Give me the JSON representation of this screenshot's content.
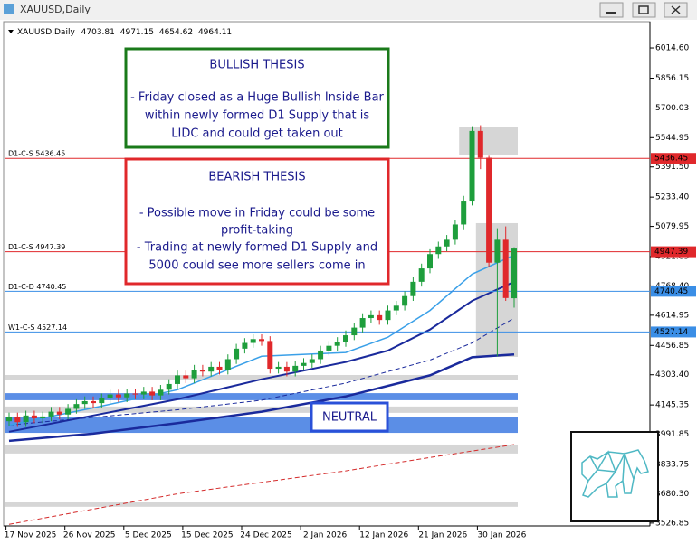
{
  "chart_data": {
    "type": "candlestick",
    "symbol": "XAUUSD,Daily",
    "categories": [
      null,
      null,
      "17 Nov 2025",
      null,
      null,
      null,
      null,
      null,
      null,
      "26 Nov 2025",
      null,
      null,
      null,
      null,
      null,
      null,
      "5 Dec 2025",
      null,
      null,
      null,
      null,
      null,
      null,
      "15 Dec 2025",
      null,
      null,
      null,
      null,
      null,
      null,
      "24 Dec 2025",
      null,
      null,
      null,
      null,
      null,
      null,
      "2 Jan 2026",
      null,
      null,
      null,
      null,
      null,
      null,
      "12 Jan 2026",
      null,
      null,
      null,
      null,
      null,
      null,
      "21 Jan 2026",
      null,
      null,
      null,
      null,
      null,
      null,
      "30 Jan 2026",
      null,
      null
    ],
    "open": [
      4060,
      4080,
      4055,
      4090,
      4075,
      4085,
      4110,
      4095,
      4125,
      4150,
      4165,
      4155,
      4180,
      4200,
      4185,
      4205,
      4200,
      4215,
      4195,
      4225,
      4255,
      4300,
      4285,
      4330,
      4320,
      4345,
      4330,
      4385,
      4440,
      4470,
      4490,
      4480,
      4335,
      4345,
      4320,
      4350,
      4365,
      4385,
      4430,
      4455,
      4475,
      4510,
      4550,
      4600,
      4615,
      4590,
      4640,
      4665,
      4715,
      4790,
      4860,
      4935,
      4975,
      5010,
      5090,
      5215,
      5580,
      5440,
      4890,
      5010,
      4703.81
    ],
    "high": [
      4105,
      4105,
      4115,
      4115,
      4110,
      4135,
      4135,
      4150,
      4175,
      4190,
      4190,
      4205,
      4225,
      4225,
      4230,
      4230,
      4240,
      4240,
      4250,
      4280,
      4325,
      4325,
      4355,
      4355,
      4370,
      4370,
      4410,
      4465,
      4495,
      4515,
      4515,
      4505,
      4370,
      4370,
      4375,
      4390,
      4410,
      4455,
      4480,
      4500,
      4535,
      4575,
      4625,
      4640,
      4640,
      4665,
      4690,
      4740,
      4815,
      4885,
      4960,
      5000,
      5035,
      5115,
      5240,
      5605,
      5610,
      5450,
      5070,
      5080,
      4971.15
    ],
    "low": [
      4035,
      4030,
      4030,
      4050,
      4050,
      4060,
      4070,
      4070,
      4100,
      4125,
      4130,
      4130,
      4155,
      4160,
      4160,
      4175,
      4175,
      4170,
      4170,
      4200,
      4230,
      4260,
      4260,
      4295,
      4295,
      4305,
      4305,
      4360,
      4415,
      4445,
      4455,
      4310,
      4310,
      4295,
      4295,
      4325,
      4340,
      4360,
      4405,
      4430,
      4450,
      4485,
      4525,
      4575,
      4565,
      4565,
      4615,
      4640,
      4690,
      4765,
      4835,
      4910,
      4950,
      4985,
      5065,
      5190,
      5380,
      4870,
      4400,
      4690,
      4654.62
    ],
    "close": [
      4080,
      4055,
      4090,
      4075,
      4085,
      4110,
      4095,
      4125,
      4150,
      4165,
      4155,
      4180,
      4200,
      4185,
      4205,
      4200,
      4215,
      4195,
      4225,
      4255,
      4300,
      4285,
      4330,
      4320,
      4345,
      4330,
      4385,
      4440,
      4470,
      4490,
      4480,
      4335,
      4345,
      4320,
      4350,
      4365,
      4385,
      4430,
      4455,
      4475,
      4510,
      4550,
      4600,
      4615,
      4590,
      4640,
      4665,
      4715,
      4790,
      4860,
      4935,
      4975,
      5010,
      5090,
      5215,
      5580,
      5440,
      4890,
      5010,
      4705,
      4964.11
    ],
    "up_color": "#1e9e3c",
    "down_color": "#e0282b",
    "ylim": [
      3512,
      6133
    ],
    "yticks": [
      {
        "value": 6014.6,
        "label": "6014.60"
      },
      {
        "value": 5856.15,
        "label": "5856.15"
      },
      {
        "value": 5700.03,
        "label": "5700.03"
      },
      {
        "value": 5544.95,
        "label": "5544.95"
      },
      {
        "value": 5391.5,
        "label": "5391.50"
      },
      {
        "value": 5233.4,
        "label": "5233.40"
      },
      {
        "value": 5079.95,
        "label": "5079.95"
      },
      {
        "value": 4921.85,
        "label": "4921.85"
      },
      {
        "value": 4768.4,
        "label": "4768.40"
      },
      {
        "value": 4614.95,
        "label": "4614.95"
      },
      {
        "value": 4456.85,
        "label": "4456.85"
      },
      {
        "value": 4303.4,
        "label": "4303.40"
      },
      {
        "value": 4145.35,
        "label": "4145.35"
      },
      {
        "value": 3991.85,
        "label": "3991.85"
      },
      {
        "value": 3833.75,
        "label": "3833.75"
      },
      {
        "value": 3680.3,
        "label": "3680.30"
      },
      {
        "value": 3526.85,
        "label": "3526.85"
      }
    ],
    "overlays": [
      {
        "color": "#d42a2a",
        "dashed": true,
        "width": 1,
        "x": [
          0,
          10,
          20,
          30,
          40,
          50,
          60
        ],
        "values": [
          3520,
          3600,
          3680,
          3740,
          3800,
          3870,
          3938
        ]
      },
      {
        "color": "#1a2a9c",
        "dashed": false,
        "width": 2.5,
        "x": [
          0,
          10,
          20,
          30,
          40,
          50,
          55,
          60
        ],
        "values": [
          3957,
          3995,
          4050,
          4110,
          4190,
          4300,
          4395,
          4410
        ]
      },
      {
        "color": "#1a2a9c",
        "dashed": true,
        "width": 1,
        "x": [
          0,
          10,
          20,
          30,
          40,
          50,
          55,
          60
        ],
        "values": [
          4040,
          4080,
          4120,
          4170,
          4260,
          4380,
          4470,
          4600
        ]
      },
      {
        "color": "#1a2a9c",
        "dashed": false,
        "width": 2,
        "x": [
          0,
          10,
          20,
          30,
          40,
          45,
          50,
          55,
          60
        ],
        "values": [
          4005,
          4090,
          4175,
          4280,
          4370,
          4430,
          4540,
          4690,
          4790
        ]
      },
      {
        "color": "#3aa0e8",
        "dashed": false,
        "width": 1.5,
        "x": [
          0,
          10,
          20,
          30,
          40,
          45,
          50,
          55,
          60
        ],
        "values": [
          4040,
          4130,
          4225,
          4400,
          4420,
          4500,
          4640,
          4830,
          4930
        ]
      }
    ],
    "zones": [
      {
        "from": 0,
        "to": 60,
        "low": 4274,
        "high": 4302,
        "color": "#d6d6d6"
      },
      {
        "from": 0,
        "to": 60,
        "low": 4170,
        "high": 4207,
        "color": "#5b8ee6"
      },
      {
        "from": 0,
        "to": 60,
        "low": 4104,
        "high": 4137,
        "color": "#d6d6d6"
      },
      {
        "from": 0,
        "to": 60,
        "low": 3999,
        "high": 4080,
        "color": "#5b8ee6"
      },
      {
        "from": 0,
        "to": 60,
        "low": 3891,
        "high": 3938,
        "color": "#d6d6d6"
      },
      {
        "from": 0,
        "to": 60,
        "low": 3612,
        "high": 3635,
        "color": "#d6d6d6"
      },
      {
        "from": 54,
        "to": 60,
        "low": 5452,
        "high": 5603,
        "color": "#d6d6d6"
      },
      {
        "from": 56,
        "to": 60,
        "low": 4397,
        "high": 5097,
        "color": "#d6d6d6"
      }
    ],
    "levels": [
      {
        "label": "D1-C-S 5436.45",
        "value": 5436.45,
        "color": "#e0282b"
      },
      {
        "label": "D1-C-S 4947.39",
        "value": 4947.39,
        "color": "#e0282b"
      },
      {
        "label": "D1-C-D 4740.45",
        "value": 4740.45,
        "color": "#3a8ee6"
      },
      {
        "label": "W1-C-S 4527.14",
        "value": 4527.14,
        "color": "#3a8ee6"
      }
    ],
    "annotations": [
      {
        "title": "BULLISH THESIS",
        "lines": [
          "- Friday closed as a Huge Bullish Inside Bar",
          "within newly formed D1 Supply that is",
          "LIDC and could get taken out"
        ],
        "color": "#1a7a1a"
      },
      {
        "title": "BEARISH THESIS",
        "lines": [
          "- Possible move in Friday could be some",
          "profit-taking",
          "- Trading at newly formed D1 Supply and",
          "5000 could see more sellers come in"
        ],
        "color": "#e0282b"
      },
      {
        "title": "NEUTRAL",
        "lines": [],
        "color": "#2a50d8"
      }
    ]
  }
}
